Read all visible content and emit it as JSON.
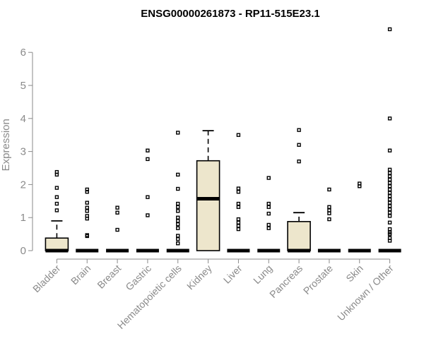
{
  "chart_data": {
    "type": "boxplot",
    "title": "ENSG00000261873 - RP11-515E23.1",
    "ylabel": "Expression",
    "xlabel": "",
    "ylim": [
      0,
      6.7
    ],
    "yticks": [
      0,
      1,
      2,
      3,
      4,
      5,
      6
    ],
    "grid": false,
    "legend": "none",
    "box_fill": "#ede6cc",
    "box_stroke": "#000000",
    "axis_color": "#8a8a8a",
    "categories": [
      "Bladder",
      "Brain",
      "Breast",
      "Gastric",
      "Hematopoietic cells",
      "Kidney",
      "Liver",
      "Lung",
      "Pancreas",
      "Prostate",
      "Skin",
      "Unknown / Other"
    ],
    "boxes": [
      {
        "name": "Bladder",
        "q1": 0,
        "median": 0,
        "q3": 0.38,
        "whisker_low": 0,
        "whisker_high": 0.9,
        "outliers": [
          2.38,
          2.3,
          1.9,
          1.62,
          1.42,
          1.22
        ]
      },
      {
        "name": "Brain",
        "q1": 0,
        "median": 0,
        "q3": 0,
        "whisker_low": 0,
        "whisker_high": 0,
        "outliers": [
          1.85,
          1.78,
          1.45,
          1.3,
          1.2,
          1.05,
          0.97,
          0.47,
          0.44
        ]
      },
      {
        "name": "Breast",
        "q1": 0,
        "median": 0,
        "q3": 0,
        "whisker_low": 0,
        "whisker_high": 0,
        "outliers": [
          1.3,
          1.15,
          0.63
        ]
      },
      {
        "name": "Gastric",
        "q1": 0,
        "median": 0,
        "q3": 0,
        "whisker_low": 0,
        "whisker_high": 0,
        "outliers": [
          3.03,
          2.77,
          1.62,
          1.07
        ]
      },
      {
        "name": "Hematopoietic cells",
        "q1": 0,
        "median": 0,
        "q3": 0,
        "whisker_low": 0,
        "whisker_high": 0,
        "outliers": [
          3.57,
          2.3,
          1.87,
          1.42,
          1.32,
          1.2,
          1.0,
          0.9,
          0.8,
          0.68,
          0.45,
          0.35,
          0.22
        ]
      },
      {
        "name": "Kidney",
        "q1": 0,
        "median": 1.57,
        "q3": 2.72,
        "whisker_low": 0,
        "whisker_high": 3.63,
        "outliers": []
      },
      {
        "name": "Liver",
        "q1": 0,
        "median": 0,
        "q3": 0,
        "whisker_low": 0,
        "whisker_high": 0,
        "outliers": [
          3.5,
          1.88,
          1.78,
          1.42,
          1.32,
          0.95,
          0.85,
          0.75,
          0.65
        ]
      },
      {
        "name": "Lung",
        "q1": 0,
        "median": 0,
        "q3": 0,
        "whisker_low": 0,
        "whisker_high": 0,
        "outliers": [
          2.2,
          1.42,
          1.32,
          1.12,
          0.78,
          0.68
        ]
      },
      {
        "name": "Pancreas",
        "q1": 0,
        "median": 0,
        "q3": 0.88,
        "whisker_low": 0,
        "whisker_high": 1.15,
        "outliers": [
          3.65,
          3.2,
          2.7
        ]
      },
      {
        "name": "Prostate",
        "q1": 0,
        "median": 0,
        "q3": 0,
        "whisker_low": 0,
        "whisker_high": 0,
        "outliers": [
          1.85,
          1.32,
          1.22,
          1.13,
          0.95
        ]
      },
      {
        "name": "Skin",
        "q1": 0,
        "median": 0,
        "q3": 0,
        "whisker_low": 0,
        "whisker_high": 0,
        "outliers": [
          2.03,
          1.95
        ]
      },
      {
        "name": "Unknown / Other",
        "q1": 0,
        "median": 0,
        "q3": 0,
        "whisker_low": 0,
        "whisker_high": 0,
        "outliers": [
          6.7,
          4.0,
          3.03,
          2.45,
          2.35,
          2.25,
          2.15,
          2.05,
          1.95,
          1.85,
          1.75,
          1.65,
          1.55,
          1.45,
          1.35,
          1.25,
          1.15,
          1.05,
          0.85,
          0.65,
          0.55,
          0.5,
          0.38,
          0.3
        ]
      }
    ]
  }
}
